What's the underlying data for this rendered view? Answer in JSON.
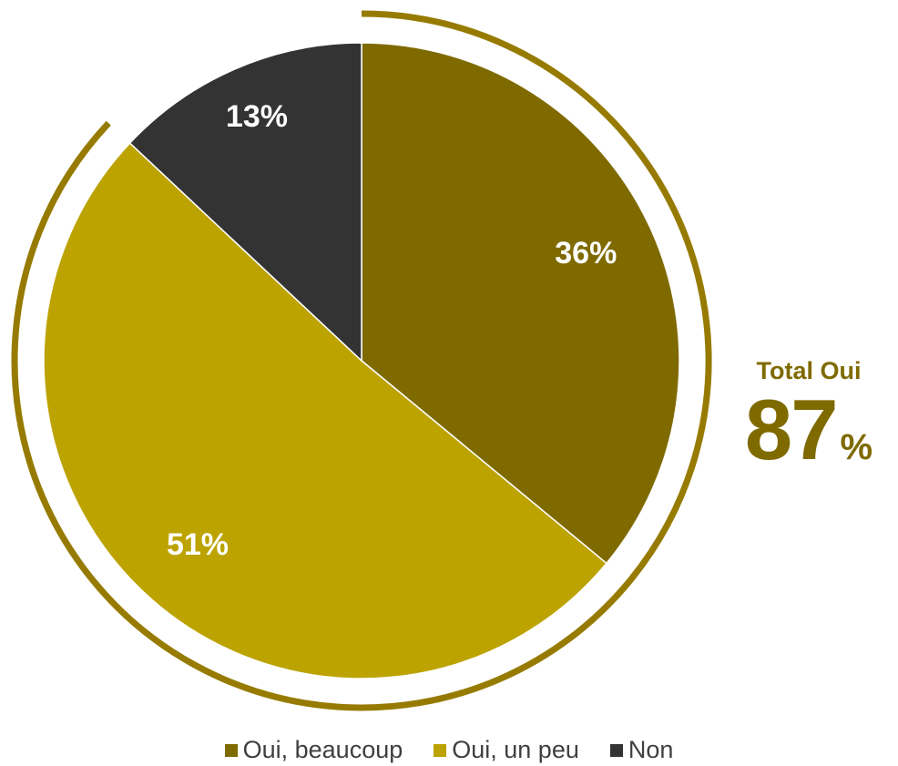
{
  "chart_data": {
    "type": "pie",
    "categories": [
      "Oui, beaucoup",
      "Oui, un peu",
      "Non"
    ],
    "values": [
      36,
      51,
      13
    ],
    "value_labels": [
      "36%",
      "51%",
      "13%"
    ],
    "colors": [
      "#7f6a00",
      "#bca300",
      "#333333"
    ],
    "highlight_arc_color": "#967b00",
    "legend_position": "bottom",
    "title": ""
  },
  "total": {
    "label": "Total Oui",
    "value": "87",
    "unit": "%"
  },
  "legend": {
    "items": [
      {
        "label": "Oui, beaucoup",
        "color": "#7f6a00"
      },
      {
        "label": "Oui, un peu",
        "color": "#bca300"
      },
      {
        "label": "Non",
        "color": "#333333"
      }
    ]
  }
}
